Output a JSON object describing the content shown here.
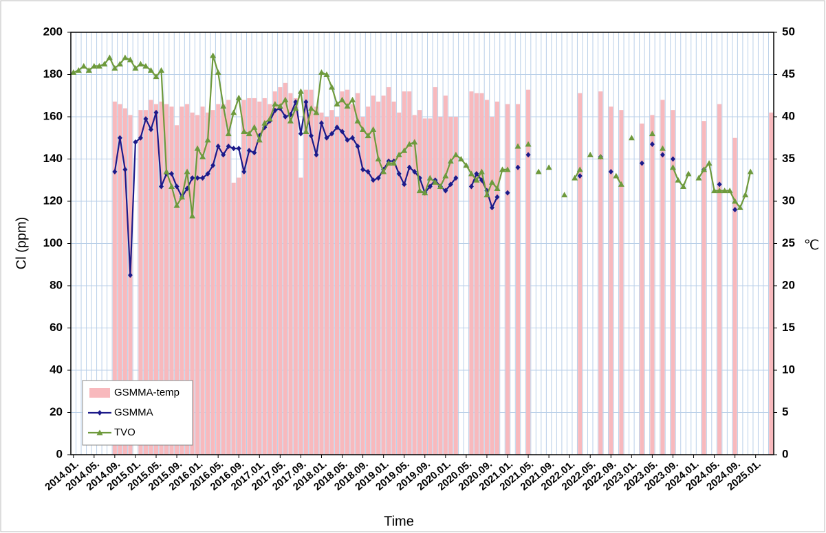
{
  "chart_data": {
    "type": "combo",
    "xlabel": "Time",
    "ylabel": "Cl (ppm)",
    "y2label": "℃",
    "categories": [
      "2014.01.",
      null,
      null,
      null,
      "2014.05.",
      null,
      null,
      null,
      "2014.09.",
      null,
      null,
      null,
      "2015.01.",
      null,
      null,
      null,
      "2015.05.",
      null,
      null,
      null,
      "2015.09.",
      null,
      null,
      null,
      "2016.01.",
      null,
      null,
      null,
      "2016.05.",
      null,
      null,
      null,
      "2016.09.",
      null,
      null,
      null,
      "2017.01.",
      null,
      null,
      null,
      "2017.05.",
      null,
      null,
      null,
      "2017.09.",
      null,
      null,
      null,
      "2018.01.",
      null,
      null,
      null,
      "2018.05.",
      null,
      null,
      null,
      "2018.09.",
      null,
      null,
      null,
      "2019.01.",
      null,
      null,
      null,
      "2019.05.",
      null,
      null,
      null,
      "2019.09.",
      null,
      null,
      null,
      "2020.01.",
      null,
      null,
      null,
      "2020.05.",
      null,
      null,
      null,
      "2020.09.",
      null,
      null,
      null,
      "2021.01.",
      null,
      null,
      null,
      "2021.05.",
      null,
      null,
      null,
      "2021.09.",
      null,
      null,
      null,
      "2022.01.",
      null,
      null,
      null,
      "2022.05.",
      null,
      null,
      null,
      "2022.09.",
      null,
      null,
      null,
      "2023.01.",
      null,
      null,
      null,
      "2023.05.",
      null,
      null,
      null,
      "2023.09.",
      null,
      null,
      null,
      "2024.01.",
      null,
      null,
      null,
      "2024.05.",
      null,
      null,
      null,
      "2024.09.",
      null,
      null,
      null,
      "2025.01.",
      null,
      null,
      null
    ],
    "series": [
      {
        "name": "GSMMA-temp",
        "type": "bar",
        "axis": "y2",
        "color": "#f8b9bd",
        "values": [
          null,
          null,
          null,
          null,
          null,
          null,
          null,
          null,
          41.8,
          41.5,
          41,
          40.2,
          null,
          40.8,
          40.8,
          42,
          41.5,
          41.8,
          41.5,
          41.2,
          39,
          41.2,
          41.5,
          40.5,
          40.2,
          41.2,
          40.5,
          40.8,
          41.5,
          41.5,
          42,
          32.2,
          32.8,
          42,
          42.2,
          42.2,
          41.8,
          42.2,
          41.5,
          43,
          43.5,
          44,
          42.8,
          42.2,
          32.8,
          43.2,
          43.2,
          41.2,
          40.5,
          40,
          40.8,
          40,
          43,
          43.2,
          41.5,
          42.8,
          40,
          41.2,
          42.5,
          41.8,
          42.5,
          43.5,
          41.8,
          40.5,
          43,
          43,
          40.2,
          40.8,
          39.8,
          39.8,
          43.5,
          40,
          42.5,
          40,
          40,
          null,
          null,
          43,
          42.8,
          42.8,
          42,
          40,
          41.8,
          null,
          41.5,
          null,
          41.5,
          null,
          43.2,
          null,
          null,
          null,
          null,
          null,
          null,
          null,
          null,
          null,
          42.8,
          null,
          null,
          null,
          43,
          null,
          41.2,
          null,
          40.8,
          null,
          null,
          null,
          39.2,
          null,
          40.2,
          null,
          42,
          null,
          40.8,
          null,
          null,
          null,
          null,
          null,
          39.5,
          null,
          null,
          41.5,
          null,
          null,
          37.5,
          null,
          null,
          null,
          null,
          null,
          null,
          40.5
        ]
      },
      {
        "name": "GSMMA",
        "type": "line",
        "marker": "diamond",
        "color": "#1c1a8a",
        "values": [
          null,
          null,
          null,
          null,
          null,
          null,
          null,
          null,
          134,
          150,
          135,
          85,
          148,
          150,
          159,
          154,
          162,
          127,
          133,
          133,
          127,
          122,
          126,
          131,
          131,
          131,
          133,
          137,
          146,
          142,
          146,
          145,
          145,
          134,
          144,
          143,
          151,
          155,
          158,
          163,
          164,
          160,
          161,
          167,
          152,
          167,
          151,
          142,
          157,
          150,
          152,
          155,
          153,
          149,
          150,
          146,
          135,
          134,
          130,
          131,
          135,
          139,
          139,
          133,
          128,
          136,
          134,
          131,
          124,
          127,
          130,
          127,
          125,
          128,
          131,
          null,
          null,
          127,
          133,
          130,
          125,
          117,
          122,
          null,
          124,
          null,
          136,
          null,
          142,
          null,
          null,
          null,
          null,
          null,
          null,
          null,
          null,
          null,
          132,
          null,
          null,
          null,
          141,
          null,
          134,
          null,
          null,
          null,
          null,
          null,
          138,
          null,
          147,
          null,
          142,
          null,
          140,
          null,
          null,
          null,
          null,
          null,
          135,
          null,
          null,
          128,
          null,
          null,
          116,
          null,
          null,
          null,
          null,
          null,
          null,
          null
        ]
      },
      {
        "name": "TVO",
        "type": "line",
        "marker": "triangle",
        "color": "#6e9a3c",
        "values": [
          181,
          182,
          184,
          182,
          184,
          184,
          185,
          188,
          183,
          185,
          188,
          187,
          183,
          185,
          184,
          182,
          179,
          182,
          134,
          127,
          118,
          122,
          134,
          113,
          145,
          141,
          149,
          189,
          181,
          165,
          152,
          162,
          169,
          153,
          152,
          155,
          149,
          157,
          159,
          166,
          165,
          168,
          158,
          164,
          172,
          153,
          164,
          162,
          181,
          180,
          174,
          166,
          168,
          165,
          168,
          158,
          154,
          151,
          154,
          140,
          134,
          138,
          138,
          142,
          144,
          147,
          148,
          125,
          124,
          131,
          129,
          127,
          132,
          139,
          142,
          140,
          137,
          133,
          130,
          134,
          123,
          129,
          126,
          135,
          135,
          null,
          146,
          null,
          147,
          null,
          134,
          null,
          136,
          null,
          null,
          123,
          null,
          131,
          135,
          null,
          142,
          null,
          141,
          null,
          null,
          132,
          128,
          null,
          150,
          null,
          null,
          null,
          152,
          null,
          145,
          null,
          136,
          130,
          127,
          133,
          null,
          131,
          135,
          138,
          125,
          125,
          125,
          125,
          120,
          117,
          123,
          134,
          null,
          null,
          null,
          null
        ]
      }
    ],
    "ylim": [
      0,
      200
    ],
    "yticks": [
      0,
      20,
      40,
      60,
      80,
      100,
      120,
      140,
      160,
      180,
      200
    ],
    "y2lim": [
      0,
      50
    ],
    "y2ticks": [
      0,
      5,
      10,
      15,
      20,
      25,
      30,
      35,
      40,
      45,
      50
    ],
    "grid": true,
    "legend": "lower left"
  }
}
